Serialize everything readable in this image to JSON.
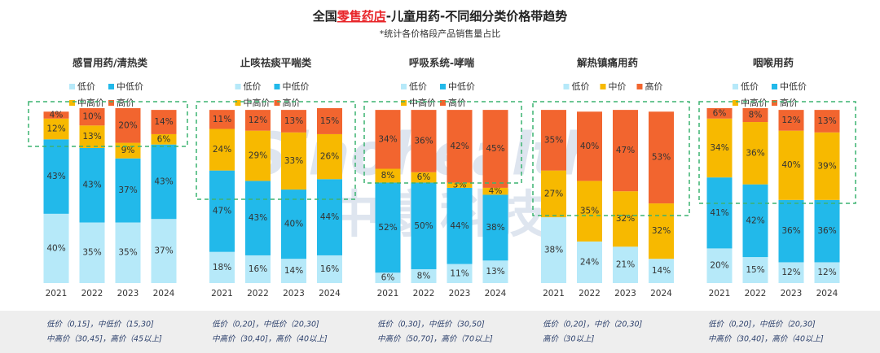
{
  "title": {
    "parts": [
      "全国",
      "零售药店",
      "-儿童用药-不同细分类价格带趋势"
    ],
    "highlight": 1
  },
  "subtitle": "*统计各价格段产品销售量占比",
  "watermark": {
    "brand": "Sinohealth",
    "name": "中康科技"
  },
  "chart_data": [
    {
      "type": "stacked_bar",
      "title": "感冒用药/清热类",
      "categories": [
        "2021",
        "2022",
        "2023",
        "2024"
      ],
      "ylim": [
        0,
        101
      ],
      "series": [
        {
          "name": "低价",
          "color": "#b6e9f9",
          "values": [
            40,
            35,
            35,
            37
          ],
          "value_labels": [
            "40%",
            "35%",
            "35%",
            "37%"
          ]
        },
        {
          "name": "中低价",
          "color": "#22b9ea",
          "values": [
            43,
            43,
            37,
            43
          ],
          "value_labels": [
            "43%",
            "43%",
            "37%",
            "43%"
          ]
        },
        {
          "name": "中高价",
          "color": "#f7b900",
          "values": [
            12,
            13,
            9,
            6
          ],
          "value_labels": [
            "12%",
            "13%",
            "9%",
            "6%"
          ]
        },
        {
          "name": "高价",
          "color": "#f2652f",
          "values": [
            4,
            10,
            20,
            14
          ],
          "value_labels": [
            "4%",
            "10%",
            "20%",
            "14%"
          ]
        }
      ],
      "notes": [
        "低价（0,15]，中低价（15,30]",
        "中高价（30,45]，高价（45以上]"
      ]
    },
    {
      "type": "stacked_bar",
      "title": "止咳祛痰平喘类",
      "categories": [
        "2021",
        "2022",
        "2023",
        "2024"
      ],
      "ylim": [
        0,
        101
      ],
      "series": [
        {
          "name": "低价",
          "color": "#b6e9f9",
          "values": [
            18,
            16,
            14,
            16
          ],
          "value_labels": [
            "18%",
            "16%",
            "14%",
            "16%"
          ]
        },
        {
          "name": "中低价",
          "color": "#22b9ea",
          "values": [
            47,
            43,
            40,
            44
          ],
          "value_labels": [
            "47%",
            "43%",
            "40%",
            "44%"
          ]
        },
        {
          "name": "中高价",
          "color": "#f7b900",
          "values": [
            24,
            29,
            33,
            26
          ],
          "value_labels": [
            "24%",
            "29%",
            "33%",
            "26%"
          ]
        },
        {
          "name": "高价",
          "color": "#f2652f",
          "values": [
            11,
            12,
            13,
            15
          ],
          "value_labels": [
            "11%",
            "12%",
            "13%",
            "15%"
          ]
        }
      ],
      "notes": [
        "低价（0,20]，中低价（20,30]",
        "中高价（30,40]，高价（40以上]"
      ]
    },
    {
      "type": "stacked_bar",
      "title": "呼吸系统-哮喘",
      "categories": [
        "2021",
        "2022",
        "2023",
        "2024"
      ],
      "ylim": [
        0,
        101
      ],
      "series": [
        {
          "name": "低价",
          "color": "#b6e9f9",
          "values": [
            6,
            8,
            11,
            13
          ],
          "value_labels": [
            "6%",
            "8%",
            "11%",
            "13%"
          ]
        },
        {
          "name": "中低价",
          "color": "#22b9ea",
          "values": [
            52,
            50,
            44,
            38
          ],
          "value_labels": [
            "52%",
            "50%",
            "44%",
            "38%"
          ]
        },
        {
          "name": "中高价",
          "color": "#f7b900",
          "values": [
            8,
            6,
            3,
            4
          ],
          "value_labels": [
            "8%",
            "6%",
            "3%",
            "4%"
          ]
        },
        {
          "name": "高价",
          "color": "#f2652f",
          "values": [
            34,
            36,
            42,
            45
          ],
          "value_labels": [
            "34%",
            "36%",
            "42%",
            "45%"
          ]
        }
      ],
      "notes": [
        "低价（0,30]，中低价（30,50]",
        "中高价（50,70]，高价（70以上]"
      ]
    },
    {
      "type": "stacked_bar",
      "title": "解热镇痛用药",
      "categories": [
        "2021",
        "2022",
        "2023",
        "2024"
      ],
      "ylim": [
        0,
        101
      ],
      "series": [
        {
          "name": "低价",
          "color": "#b6e9f9",
          "values": [
            38,
            24,
            21,
            14
          ],
          "value_labels": [
            "38%",
            "24%",
            "21%",
            "14%"
          ]
        },
        {
          "name": "中价",
          "color": "#f7b900",
          "values": [
            27,
            35,
            32,
            32
          ],
          "value_labels": [
            "27%",
            "35%",
            "32%",
            "32%"
          ]
        },
        {
          "name": "高价",
          "color": "#f2652f",
          "values": [
            35,
            40,
            47,
            53
          ],
          "value_labels": [
            "35%",
            "40%",
            "47%",
            "53%"
          ]
        }
      ],
      "notes": [
        "低价（0,20]，中价（20,30]",
        "高价（30以上]"
      ]
    },
    {
      "type": "stacked_bar",
      "title": "咽喉用药",
      "categories": [
        "2021",
        "2022",
        "2023",
        "2024"
      ],
      "ylim": [
        0,
        101
      ],
      "series": [
        {
          "name": "低价",
          "color": "#b6e9f9",
          "values": [
            20,
            15,
            12,
            12
          ],
          "value_labels": [
            "20%",
            "15%",
            "12%",
            "12%"
          ]
        },
        {
          "name": "中低价",
          "color": "#22b9ea",
          "values": [
            41,
            42,
            36,
            36
          ],
          "value_labels": [
            "41%",
            "42%",
            "36%",
            "36%"
          ]
        },
        {
          "name": "中高价",
          "color": "#f7b900",
          "values": [
            34,
            36,
            40,
            39
          ],
          "value_labels": [
            "34%",
            "36%",
            "40%",
            "39%"
          ]
        },
        {
          "name": "高价",
          "color": "#f2652f",
          "values": [
            6,
            8,
            12,
            13
          ],
          "value_labels": [
            "6%",
            "8%",
            "12%",
            "13%"
          ]
        }
      ],
      "notes": [
        "低价（0,20]，中低价（20,30]",
        "中高价（30,40]，高价（40以上]"
      ]
    }
  ]
}
